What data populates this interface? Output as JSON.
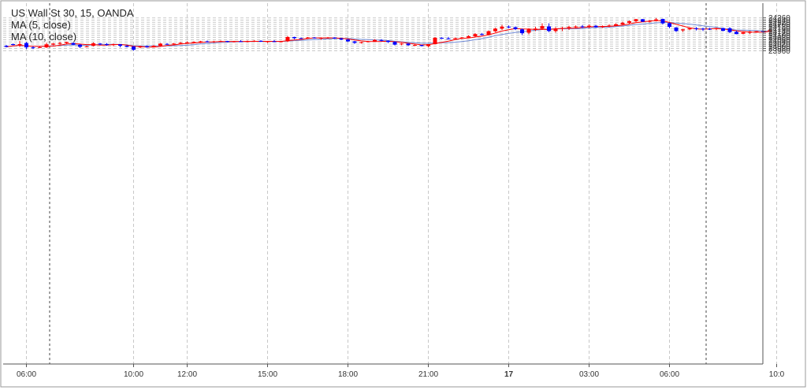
{
  "legend": {
    "symbol": "US Wall St 30, 15, OANDA",
    "ma5": "MA (5, close)",
    "ma10": "MA (10, close)"
  },
  "colors": {
    "up": "#ff0000",
    "down": "#0000ff",
    "ma5": "#ff0000",
    "ma10": "#6f8ad6",
    "grid": "#c8c8c8"
  },
  "chart_data": {
    "type": "candlestick",
    "symbol": "US Wall St 30",
    "timeframe": "15",
    "source": "OANDA",
    "grid": true,
    "legend_position": "top-left",
    "ylim": [
      23945,
      24270
    ],
    "y_ticks": [
      23960,
      23980,
      24000,
      24020,
      24040,
      24060,
      24080,
      24100,
      24120,
      24140,
      24160,
      24180,
      24200,
      24220,
      24240,
      24260
    ],
    "x_ticks": [
      {
        "label": "06:00",
        "index": 3,
        "bold": false
      },
      {
        "label": "10:00",
        "index": 19,
        "bold": false
      },
      {
        "label": "12:00",
        "index": 27,
        "bold": false
      },
      {
        "label": "15:00",
        "index": 39,
        "bold": false
      },
      {
        "label": "18:00",
        "index": 51,
        "bold": false
      },
      {
        "label": "21:00",
        "index": 63,
        "bold": false
      },
      {
        "label": "17",
        "index": 75,
        "bold": true
      },
      {
        "label": "03:00",
        "index": 87,
        "bold": false
      },
      {
        "label": "06:00",
        "index": 99,
        "bold": false
      },
      {
        "label": "10:0",
        "index": 115,
        "bold": false
      }
    ],
    "session_markers": [
      6,
      104
    ],
    "ohlc": [
      [
        24005,
        24012,
        23990,
        23995
      ],
      [
        24020,
        24025,
        24010,
        24012
      ],
      [
        24020,
        24048,
        23995,
        24020
      ],
      [
        24030,
        24040,
        23975,
        23990
      ],
      [
        23990,
        24000,
        23975,
        23985
      ],
      [
        23990,
        24000,
        23985,
        23992
      ],
      [
        23990,
        24033,
        23985,
        24018
      ],
      [
        24015,
        24030,
        24010,
        24025
      ],
      [
        24025,
        24040,
        24015,
        24030
      ],
      [
        24030,
        24042,
        24022,
        24040
      ],
      [
        24030,
        24035,
        24010,
        24015
      ],
      [
        24015,
        24020,
        23985,
        23995
      ],
      [
        23995,
        24005,
        23990,
        24000
      ],
      [
        24005,
        24035,
        24000,
        24028
      ],
      [
        24025,
        24030,
        24010,
        24020
      ],
      [
        24020,
        24030,
        24005,
        24012
      ],
      [
        24012,
        24025,
        24002,
        24020
      ],
      [
        24018,
        24020,
        23990,
        24005
      ],
      [
        24005,
        24010,
        23990,
        23995
      ],
      [
        23998,
        24002,
        23960,
        23968
      ],
      [
        23990,
        24005,
        23982,
        24002
      ],
      [
        24000,
        24008,
        23988,
        23992
      ],
      [
        23992,
        24010,
        23990,
        24005
      ],
      [
        24005,
        24030,
        24000,
        24025
      ],
      [
        24022,
        24030,
        24015,
        24018
      ],
      [
        24018,
        24030,
        24012,
        24025
      ],
      [
        24025,
        24038,
        24020,
        24032
      ],
      [
        24030,
        24045,
        24025,
        24035
      ],
      [
        24035,
        24045,
        24030,
        24040
      ],
      [
        24040,
        24050,
        24030,
        24045
      ],
      [
        24045,
        24052,
        24035,
        24040
      ],
      [
        24038,
        24050,
        24033,
        24045
      ],
      [
        24045,
        24052,
        24038,
        24048
      ],
      [
        24048,
        24050,
        24038,
        24042
      ],
      [
        24042,
        24050,
        24036,
        24046
      ],
      [
        24046,
        24055,
        24040,
        24040
      ],
      [
        24040,
        24052,
        24035,
        24048
      ],
      [
        24048,
        24055,
        24040,
        24050
      ],
      [
        24050,
        24055,
        24040,
        24042
      ],
      [
        24042,
        24050,
        24032,
        24046
      ],
      [
        24046,
        24056,
        24038,
        24040
      ],
      [
        24040,
        24050,
        24035,
        24046
      ],
      [
        24046,
        24094,
        24040,
        24085
      ],
      [
        24085,
        24088,
        24065,
        24074
      ],
      [
        24074,
        24080,
        24068,
        24072
      ],
      [
        24072,
        24085,
        24068,
        24080
      ],
      [
        24080,
        24084,
        24072,
        24076
      ],
      [
        24076,
        24082,
        24060,
        24078
      ],
      [
        24078,
        24085,
        24070,
        24080
      ],
      [
        24080,
        24082,
        24068,
        24072
      ],
      [
        24072,
        24078,
        24056,
        24062
      ],
      [
        24062,
        24068,
        24040,
        24045
      ],
      [
        24045,
        24050,
        24022,
        24032
      ],
      [
        24032,
        24042,
        24025,
        24038
      ],
      [
        24040,
        24050,
        24035,
        24046
      ],
      [
        24046,
        24065,
        24042,
        24058
      ],
      [
        24058,
        24065,
        24045,
        24050
      ],
      [
        24050,
        24055,
        24030,
        24040
      ],
      [
        24040,
        24045,
        24008,
        24015
      ],
      [
        24018,
        24030,
        24010,
        24025
      ],
      [
        24025,
        24030,
        24005,
        24010
      ],
      [
        24010,
        24020,
        24002,
        24012
      ],
      [
        24012,
        24015,
        23998,
        24003
      ],
      [
        24002,
        24020,
        23992,
        24020
      ],
      [
        24020,
        24084,
        24016,
        24078
      ],
      [
        24078,
        24082,
        24068,
        24070
      ],
      [
        24072,
        24086,
        24062,
        24065
      ],
      [
        24070,
        24080,
        24066,
        24074
      ],
      [
        24074,
        24085,
        24066,
        24080
      ],
      [
        24080,
        24100,
        24075,
        24092
      ],
      [
        24092,
        24120,
        24085,
        24112
      ],
      [
        24112,
        24122,
        24098,
        24105
      ],
      [
        24105,
        24145,
        24100,
        24138
      ],
      [
        24138,
        24170,
        24130,
        24162
      ],
      [
        24162,
        24196,
        24150,
        24180
      ],
      [
        24180,
        24190,
        24165,
        24174
      ],
      [
        24174,
        24182,
        24148,
        24158
      ],
      [
        24155,
        24162,
        24105,
        24120
      ],
      [
        24125,
        24165,
        24110,
        24155
      ],
      [
        24150,
        24178,
        24140,
        24162
      ],
      [
        24162,
        24210,
        24150,
        24185
      ],
      [
        24182,
        24210,
        24130,
        24140
      ],
      [
        24140,
        24175,
        24125,
        24162
      ],
      [
        24162,
        24178,
        24140,
        24168
      ],
      [
        24168,
        24188,
        24150,
        24176
      ],
      [
        24176,
        24190,
        24165,
        24182
      ],
      [
        24182,
        24195,
        24168,
        24178
      ],
      [
        24178,
        24198,
        24165,
        24188
      ],
      [
        24188,
        24194,
        24170,
        24175
      ],
      [
        24175,
        24190,
        24168,
        24185
      ],
      [
        24185,
        24202,
        24175,
        24190
      ],
      [
        24190,
        24210,
        24183,
        24202
      ],
      [
        24202,
        24225,
        24195,
        24215
      ],
      [
        24215,
        24235,
        24205,
        24230
      ],
      [
        24230,
        24251,
        24220,
        24248
      ],
      [
        24248,
        24250,
        24222,
        24226
      ],
      [
        24224,
        24240,
        24218,
        24232
      ],
      [
        24232,
        24258,
        24228,
        24246
      ],
      [
        24250,
        24252,
        24200,
        24210
      ],
      [
        24212,
        24218,
        24165,
        24178
      ],
      [
        24172,
        24176,
        24132,
        24140
      ],
      [
        24146,
        24158,
        24132,
        24155
      ],
      [
        24155,
        24170,
        24148,
        24165
      ],
      [
        24165,
        24176,
        24145,
        24162
      ],
      [
        24162,
        24170,
        24140,
        24160
      ],
      [
        24160,
        24168,
        24150,
        24158
      ],
      [
        24158,
        24170,
        24148,
        24166
      ],
      [
        24166,
        24170,
        24138,
        24142
      ],
      [
        24165,
        24175,
        24120,
        24130
      ],
      [
        24132,
        24142,
        24110,
        24112
      ],
      [
        24115,
        24130,
        24110,
        24128
      ],
      [
        24125,
        24140,
        24112,
        24135
      ],
      [
        24135,
        24140,
        24125,
        24138
      ],
      [
        24140,
        24144,
        24128,
        24135
      ],
      [
        24132,
        24160,
        24128,
        24148
      ]
    ]
  }
}
